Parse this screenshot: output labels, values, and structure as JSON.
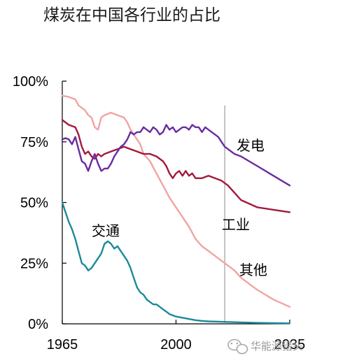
{
  "chart_data": {
    "type": "line",
    "title": "煤炭在中国各行业的占比",
    "xlabel": "",
    "ylabel": "",
    "xlim": [
      1965,
      2035
    ],
    "ylim": [
      0,
      100
    ],
    "x_ticks": [
      "1965",
      "2000",
      "2035"
    ],
    "y_ticks": [
      "0%",
      "25%",
      "50%",
      "75%",
      "100%"
    ],
    "y_tick_values": [
      0,
      25,
      50,
      75,
      100
    ],
    "x_tick_values": [
      1965,
      2000,
      2035
    ],
    "projection_start_year": 2015,
    "series": [
      {
        "name": "发电",
        "color": "#6a2b9f",
        "points": [
          [
            1965,
            76
          ],
          [
            1966,
            76.5
          ],
          [
            1967,
            76
          ],
          [
            1968,
            74
          ],
          [
            1969,
            77
          ],
          [
            1970,
            72
          ],
          [
            1971,
            67
          ],
          [
            1972,
            66
          ],
          [
            1973,
            63
          ],
          [
            1974,
            67
          ],
          [
            1975,
            70
          ],
          [
            1976,
            66
          ],
          [
            1977,
            63
          ],
          [
            1978,
            64
          ],
          [
            1979,
            64
          ],
          [
            1980,
            66
          ],
          [
            1981,
            69
          ],
          [
            1982,
            71
          ],
          [
            1983,
            73
          ],
          [
            1984,
            74
          ],
          [
            1985,
            76
          ],
          [
            1986,
            79
          ],
          [
            1987,
            78
          ],
          [
            1988,
            79
          ],
          [
            1989,
            79
          ],
          [
            1990,
            81
          ],
          [
            1991,
            80
          ],
          [
            1992,
            79
          ],
          [
            1993,
            81
          ],
          [
            1994,
            80
          ],
          [
            1995,
            78
          ],
          [
            1996,
            79
          ],
          [
            1997,
            82
          ],
          [
            1998,
            80
          ],
          [
            1999,
            81
          ],
          [
            2000,
            79
          ],
          [
            2001,
            80
          ],
          [
            2002,
            81
          ],
          [
            2003,
            81
          ],
          [
            2004,
            80
          ],
          [
            2005,
            82
          ],
          [
            2006,
            81
          ],
          [
            2007,
            81
          ],
          [
            2008,
            79
          ],
          [
            2009,
            81
          ],
          [
            2010,
            80
          ],
          [
            2011,
            79
          ],
          [
            2012,
            78
          ],
          [
            2013,
            77
          ],
          [
            2014,
            75
          ],
          [
            2015,
            73
          ],
          [
            2016,
            72
          ],
          [
            2017,
            71
          ],
          [
            2018,
            70
          ],
          [
            2020,
            69
          ],
          [
            2025,
            65
          ],
          [
            2030,
            61
          ],
          [
            2035,
            57
          ]
        ]
      },
      {
        "name": "工业",
        "color": "#a31a3c",
        "points": [
          [
            1965,
            84
          ],
          [
            1967,
            82
          ],
          [
            1969,
            81
          ],
          [
            1970,
            78
          ],
          [
            1971,
            73
          ],
          [
            1972,
            70
          ],
          [
            1973,
            71
          ],
          [
            1974,
            69
          ],
          [
            1975,
            68
          ],
          [
            1976,
            70
          ],
          [
            1977,
            69
          ],
          [
            1978,
            70
          ],
          [
            1980,
            71
          ],
          [
            1982,
            72
          ],
          [
            1984,
            73
          ],
          [
            1986,
            72
          ],
          [
            1988,
            71
          ],
          [
            1990,
            70
          ],
          [
            1992,
            70
          ],
          [
            1994,
            69
          ],
          [
            1996,
            67
          ],
          [
            1997,
            65
          ],
          [
            1998,
            62
          ],
          [
            1999,
            60
          ],
          [
            2000,
            62
          ],
          [
            2001,
            63
          ],
          [
            2002,
            61
          ],
          [
            2003,
            63
          ],
          [
            2004,
            61
          ],
          [
            2005,
            62
          ],
          [
            2006,
            60
          ],
          [
            2008,
            60
          ],
          [
            2010,
            61
          ],
          [
            2012,
            60
          ],
          [
            2014,
            59
          ],
          [
            2016,
            57
          ],
          [
            2018,
            54
          ],
          [
            2020,
            51
          ],
          [
            2025,
            48
          ],
          [
            2030,
            47
          ],
          [
            2035,
            46
          ]
        ]
      },
      {
        "name": "其他",
        "color": "#f2a3a3",
        "points": [
          [
            1965,
            94
          ],
          [
            1967,
            93.5
          ],
          [
            1969,
            92.5
          ],
          [
            1970,
            90
          ],
          [
            1971,
            89
          ],
          [
            1972,
            88
          ],
          [
            1973,
            86
          ],
          [
            1974,
            85
          ],
          [
            1975,
            81
          ],
          [
            1976,
            80
          ],
          [
            1977,
            85
          ],
          [
            1978,
            86
          ],
          [
            1980,
            87
          ],
          [
            1982,
            86
          ],
          [
            1984,
            85
          ],
          [
            1985,
            83
          ],
          [
            1986,
            80
          ],
          [
            1987,
            78
          ],
          [
            1988,
            76
          ],
          [
            1989,
            74
          ],
          [
            1990,
            70
          ],
          [
            1992,
            67
          ],
          [
            1994,
            62
          ],
          [
            1996,
            57
          ],
          [
            1998,
            52
          ],
          [
            2000,
            48
          ],
          [
            2002,
            44
          ],
          [
            2004,
            40
          ],
          [
            2006,
            35
          ],
          [
            2008,
            32
          ],
          [
            2010,
            30
          ],
          [
            2012,
            28
          ],
          [
            2014,
            26
          ],
          [
            2016,
            24
          ],
          [
            2018,
            22
          ],
          [
            2020,
            19
          ],
          [
            2025,
            14
          ],
          [
            2030,
            10
          ],
          [
            2035,
            7
          ]
        ]
      },
      {
        "name": "交通",
        "color": "#1a8a99",
        "points": [
          [
            1965,
            50
          ],
          [
            1966,
            46
          ],
          [
            1967,
            42
          ],
          [
            1968,
            39
          ],
          [
            1969,
            35
          ],
          [
            1970,
            30
          ],
          [
            1971,
            25
          ],
          [
            1972,
            24
          ],
          [
            1973,
            22
          ],
          [
            1974,
            23
          ],
          [
            1975,
            25
          ],
          [
            1976,
            27
          ],
          [
            1977,
            29
          ],
          [
            1978,
            33
          ],
          [
            1979,
            34
          ],
          [
            1980,
            33
          ],
          [
            1981,
            31
          ],
          [
            1982,
            32
          ],
          [
            1983,
            30
          ],
          [
            1984,
            28
          ],
          [
            1985,
            26
          ],
          [
            1986,
            23
          ],
          [
            1987,
            19
          ],
          [
            1988,
            15
          ],
          [
            1989,
            13
          ],
          [
            1990,
            12
          ],
          [
            1991,
            10
          ],
          [
            1992,
            9
          ],
          [
            1993,
            8
          ],
          [
            1994,
            8
          ],
          [
            1995,
            7
          ],
          [
            1996,
            6
          ],
          [
            1997,
            5
          ],
          [
            1998,
            4
          ],
          [
            2000,
            3
          ],
          [
            2002,
            2.5
          ],
          [
            2004,
            2
          ],
          [
            2006,
            1.5
          ],
          [
            2008,
            1.2
          ],
          [
            2010,
            1
          ],
          [
            2015,
            0.8
          ],
          [
            2020,
            0.6
          ],
          [
            2025,
            0.4
          ],
          [
            2030,
            0.3
          ],
          [
            2035,
            0.2
          ]
        ]
      }
    ],
    "annotations": {
      "label_power": "发电",
      "label_industry": "工业",
      "label_other": "其他",
      "label_transport": "交通"
    }
  },
  "watermark": {
    "text": "华能源猎头",
    "icon": "wechat-icon"
  }
}
